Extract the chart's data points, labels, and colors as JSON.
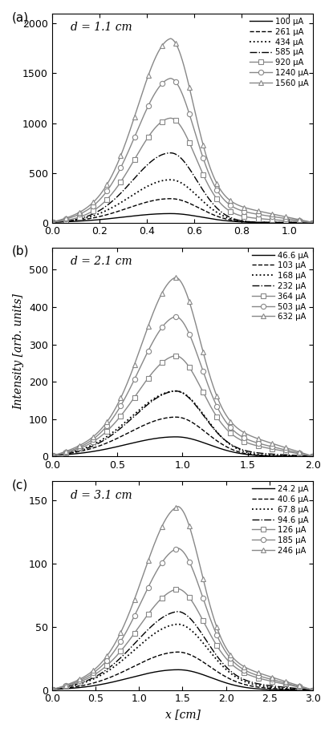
{
  "panels": [
    {
      "label": "a",
      "d_label": "d = 1.1 cm",
      "xlim": [
        0.0,
        1.1
      ],
      "xticks": [
        0.0,
        0.2,
        0.4,
        0.6,
        0.8,
        1.0
      ],
      "ylim": [
        0,
        2100
      ],
      "yticks": [
        0,
        500,
        1000,
        1500,
        2000
      ],
      "peak_x": 0.5,
      "x_end": 1.1,
      "curves": [
        {
          "label": "100 μA",
          "style": "solid",
          "marker": null,
          "color": "black",
          "peak": 90,
          "base_l": 0,
          "base_r": 0,
          "sigma_l": 0.2,
          "sigma_r": 0.13
        },
        {
          "label": "261 μA",
          "style": "dashed",
          "marker": null,
          "color": "black",
          "peak": 240,
          "base_l": 0,
          "base_r": 0,
          "sigma_l": 0.18,
          "sigma_r": 0.12
        },
        {
          "label": "434 μA",
          "style": "dotted",
          "marker": null,
          "color": "black",
          "peak": 430,
          "base_l": 0,
          "base_r": 0,
          "sigma_l": 0.17,
          "sigma_r": 0.115
        },
        {
          "label": "585 μA",
          "style": "dashdot",
          "marker": null,
          "color": "black",
          "peak": 700,
          "base_l": 0,
          "base_r": 0,
          "sigma_l": 0.16,
          "sigma_r": 0.11
        },
        {
          "label": "920 μA",
          "style": "solid",
          "marker": "s",
          "color": "#888888",
          "peak": 1050,
          "base_l": 80,
          "base_r": 100,
          "sigma_l": 0.15,
          "sigma_r": 0.105
        },
        {
          "label": "1240 μA",
          "style": "solid",
          "marker": "o",
          "color": "#888888",
          "peak": 1450,
          "base_l": 200,
          "base_r": 210,
          "sigma_l": 0.145,
          "sigma_r": 0.1
        },
        {
          "label": "1560 μA",
          "style": "solid",
          "marker": "^",
          "color": "#888888",
          "peak": 1850,
          "base_l": 290,
          "base_r": 300,
          "sigma_l": 0.14,
          "sigma_r": 0.095
        }
      ]
    },
    {
      "label": "b",
      "d_label": "d = 2.1 cm",
      "xlim": [
        0.0,
        2.0
      ],
      "xticks": [
        0.0,
        0.5,
        1.0,
        1.5,
        2.0
      ],
      "ylim": [
        0,
        560
      ],
      "yticks": [
        0,
        100,
        200,
        300,
        400,
        500
      ],
      "peak_x": 0.95,
      "x_end": 2.0,
      "curves": [
        {
          "label": "46.6 μA",
          "style": "solid",
          "marker": null,
          "color": "black",
          "peak": 52,
          "base_l": 0,
          "base_r": 0,
          "sigma_l": 0.38,
          "sigma_r": 0.25
        },
        {
          "label": "103 μA",
          "style": "dashed",
          "marker": null,
          "color": "black",
          "peak": 105,
          "base_l": 0,
          "base_r": 0,
          "sigma_l": 0.36,
          "sigma_r": 0.23
        },
        {
          "label": "168 μA",
          "style": "dotted",
          "marker": null,
          "color": "black",
          "peak": 175,
          "base_l": 5,
          "base_r": 5,
          "sigma_l": 0.34,
          "sigma_r": 0.22
        },
        {
          "label": "232 μA",
          "style": "dashdot",
          "marker": null,
          "color": "black",
          "peak": 175,
          "base_l": 18,
          "base_r": 18,
          "sigma_l": 0.32,
          "sigma_r": 0.21
        },
        {
          "label": "364 μA",
          "style": "solid",
          "marker": "s",
          "color": "#888888",
          "peak": 270,
          "base_l": 46,
          "base_r": 65,
          "sigma_l": 0.3,
          "sigma_r": 0.2
        },
        {
          "label": "503 μA",
          "style": "solid",
          "marker": "o",
          "color": "#888888",
          "peak": 375,
          "base_l": 68,
          "base_r": 85,
          "sigma_l": 0.28,
          "sigma_r": 0.19
        },
        {
          "label": "632 μA",
          "style": "solid",
          "marker": "^",
          "color": "#888888",
          "peak": 480,
          "base_l": 100,
          "base_r": 115,
          "sigma_l": 0.26,
          "sigma_r": 0.18
        }
      ]
    },
    {
      "label": "c",
      "d_label": "d = 3.1 cm",
      "xlim": [
        0.0,
        3.0
      ],
      "xticks": [
        0.0,
        0.5,
        1.0,
        1.5,
        2.0,
        2.5,
        3.0
      ],
      "ylim": [
        0,
        165
      ],
      "yticks": [
        0,
        50,
        100,
        150
      ],
      "peak_x": 1.45,
      "x_end": 3.0,
      "curves": [
        {
          "label": "24.2 μA",
          "style": "solid",
          "marker": null,
          "color": "black",
          "peak": 16,
          "base_l": 0,
          "base_r": 0,
          "sigma_l": 0.55,
          "sigma_r": 0.38
        },
        {
          "label": "40.6 μA",
          "style": "dashed",
          "marker": null,
          "color": "black",
          "peak": 30,
          "base_l": 2,
          "base_r": 3,
          "sigma_l": 0.52,
          "sigma_r": 0.36
        },
        {
          "label": "67.8 μA",
          "style": "dotted",
          "marker": null,
          "color": "black",
          "peak": 52,
          "base_l": 5,
          "base_r": 6,
          "sigma_l": 0.5,
          "sigma_r": 0.34
        },
        {
          "label": "94.6 μA",
          "style": "dashdot",
          "marker": null,
          "color": "black",
          "peak": 62,
          "base_l": 9,
          "base_r": 10,
          "sigma_l": 0.48,
          "sigma_r": 0.32
        },
        {
          "label": "126 μA",
          "style": "solid",
          "marker": "s",
          "color": "#888888",
          "peak": 80,
          "base_l": 17,
          "base_r": 22,
          "sigma_l": 0.45,
          "sigma_r": 0.3
        },
        {
          "label": "185 μA",
          "style": "solid",
          "marker": "o",
          "color": "#888888",
          "peak": 112,
          "base_l": 23,
          "base_r": 27,
          "sigma_l": 0.42,
          "sigma_r": 0.28
        },
        {
          "label": "246 μA",
          "style": "solid",
          "marker": "^",
          "color": "#888888",
          "peak": 145,
          "base_l": 29,
          "base_r": 33,
          "sigma_l": 0.4,
          "sigma_r": 0.26
        }
      ]
    }
  ],
  "ylabel": "Intensity [arb. units]",
  "xlabel": "x [cm]",
  "bg_color": "white",
  "fig_width": 4.15,
  "fig_height": 9.13
}
